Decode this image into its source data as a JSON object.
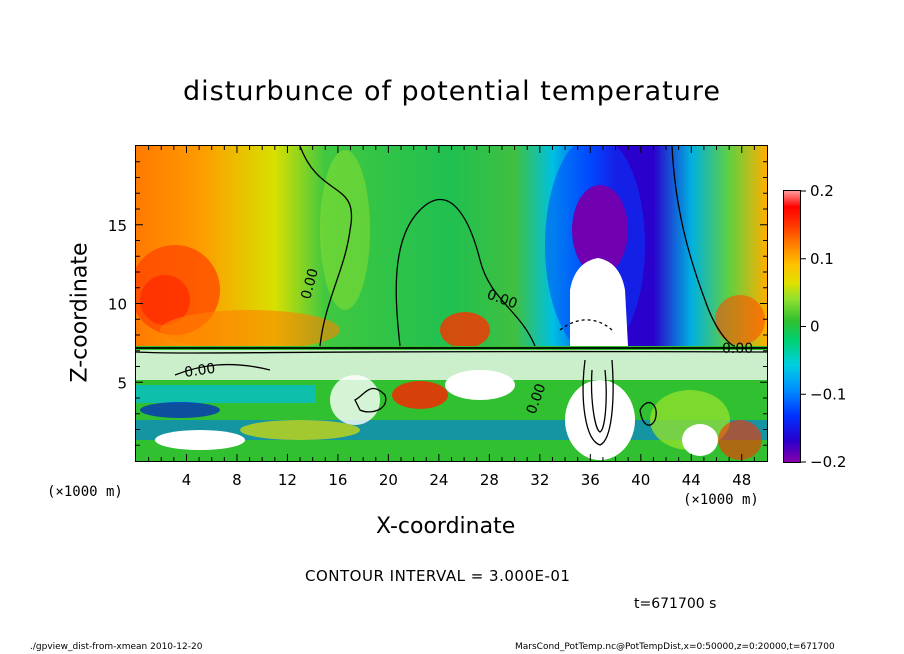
{
  "chart_data": {
    "type": "heatmap",
    "title": "disturbunce of potential temperature",
    "xlabel": "X-coordinate",
    "ylabel": "Z-coordinate",
    "x_unit_label": "(×1000 m)",
    "x_ticks": [
      4,
      8,
      12,
      16,
      20,
      24,
      28,
      32,
      36,
      40,
      44,
      48
    ],
    "y_ticks": [
      5,
      10,
      15
    ],
    "xlim": [
      0,
      50
    ],
    "ylim": [
      0,
      20
    ],
    "colorbar": {
      "ticks": [
        "0.2",
        "0.1",
        "0",
        "−0.1",
        "−0.2"
      ],
      "range": [
        -0.2,
        0.2
      ]
    },
    "contour_labels": [
      "0.00",
      "0.00",
      "0.00",
      "0.00",
      "0.00"
    ],
    "contour_interval_text": "CONTOUR INTERVAL = 3.000E-01",
    "time_text": "t=671700 s"
  },
  "footer": {
    "left": "./gpview_dist-from-xmean  2010-12-20",
    "right": "MarsCond_PotTemp.nc@PotTempDist,x=0:50000,z=0:20000,t=671700"
  },
  "colors": {
    "palette": [
      "#8800aa",
      "#2a00cc",
      "#0030ff",
      "#0090ff",
      "#00d0e0",
      "#00e070",
      "#30d030",
      "#90e030",
      "#e0e000",
      "#ffc000",
      "#ff8000",
      "#ff3000",
      "#ff0000",
      "#ff9090"
    ]
  }
}
